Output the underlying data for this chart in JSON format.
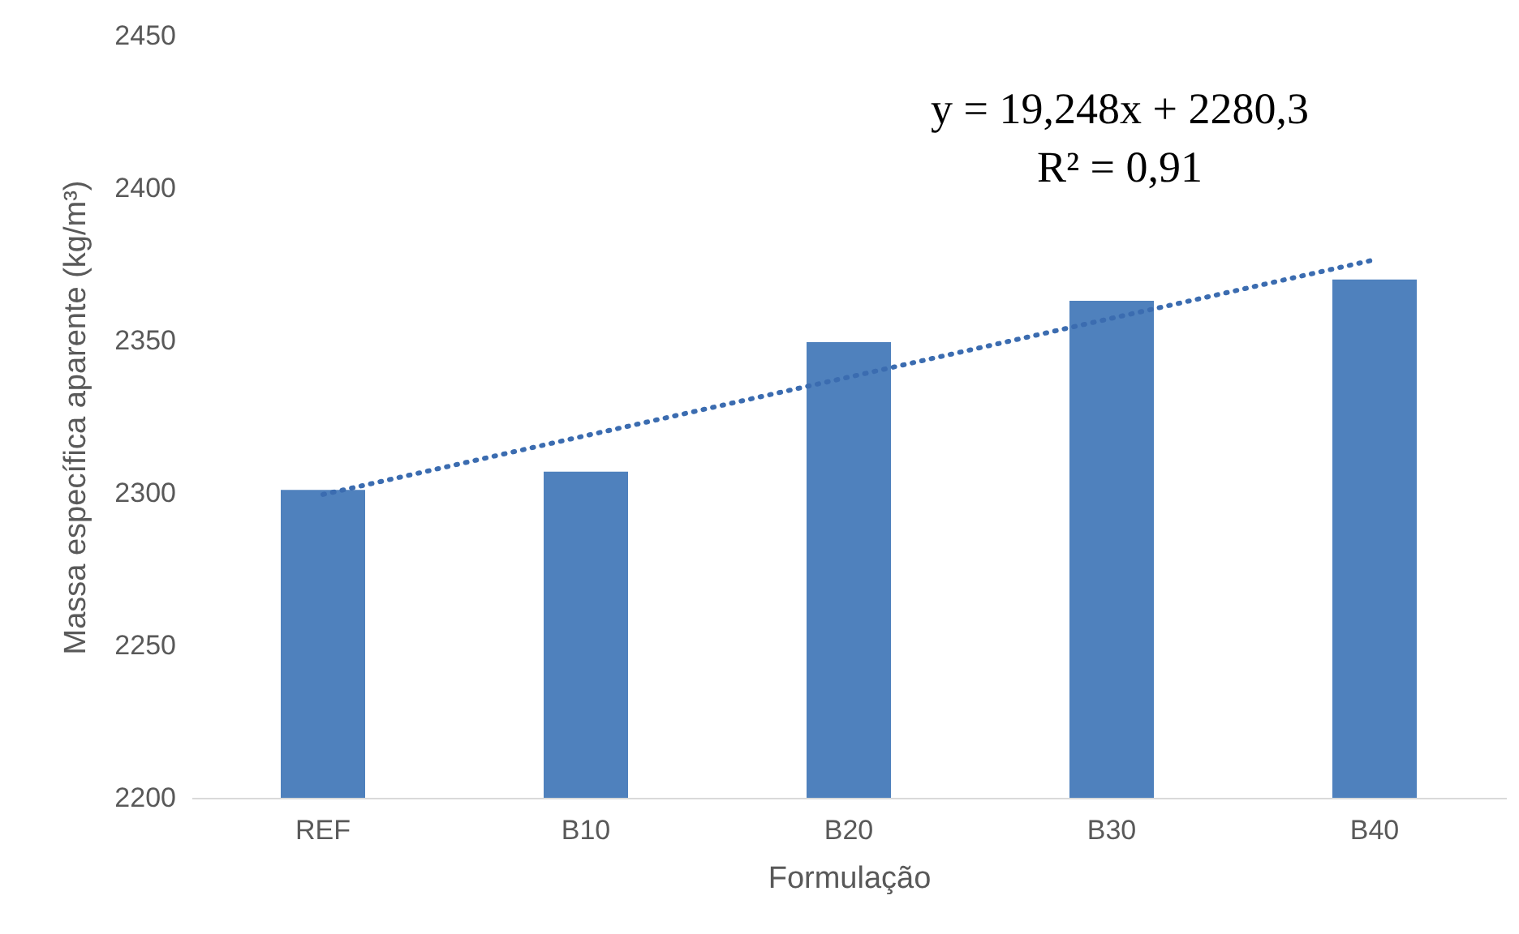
{
  "chart_data": {
    "type": "bar",
    "xlabel": "Formulação",
    "ylabel": "Massa específica aparente (kg/m³)",
    "categories": [
      "REF",
      "B10",
      "B20",
      "B30",
      "B40"
    ],
    "series": [
      {
        "color": "#4f81bd",
        "values": [
          2301,
          2307,
          2349.5,
          2363,
          2370
        ]
      },
      {
        "type": "line",
        "color": "#3b6cb0",
        "line_style": "dotted",
        "x": [
          "REF",
          "B10",
          "B20",
          "B30",
          "B40"
        ],
        "values": [
          2299.5,
          2318.8,
          2338.0,
          2357.3,
          2376.5
        ]
      }
    ],
    "ylim": [
      2200,
      2450
    ],
    "yticks": [
      2200,
      2250,
      2300,
      2350,
      2400,
      2450
    ],
    "grid": false,
    "annotations": [
      "y = 19,248x + 2280,3",
      "R² = 0,91"
    ]
  }
}
